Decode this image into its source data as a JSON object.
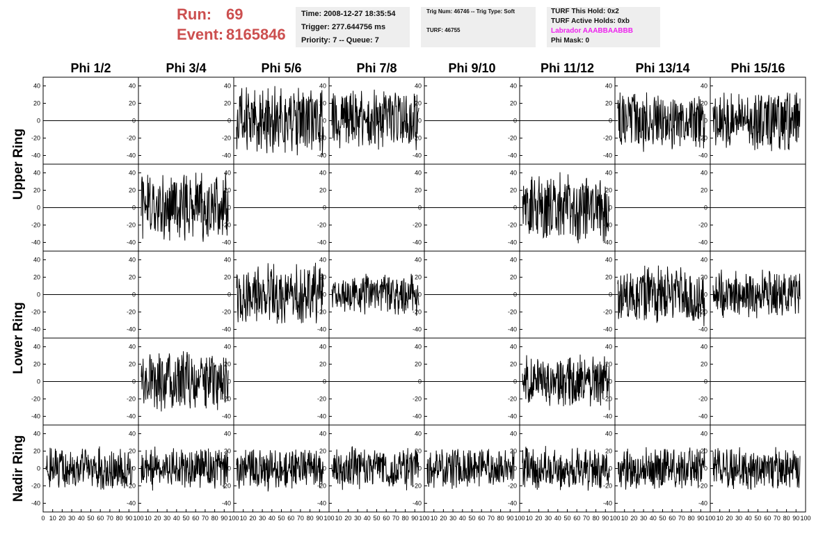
{
  "header": {
    "run_label": "Run:",
    "run_value": "69",
    "event_label": "Event:",
    "event_value": "8165846",
    "time_text": "Time: 2008-12-27 18:35:54",
    "trigger_text": "Trigger: 277.644756 ms",
    "priority_text": "Priority: 7 -- Queue: 7",
    "trig_num_text": "Trig Num: 46746 -- Trig Type: Soft",
    "turf_text": "TURF: 46755",
    "turf_hold_text": "TURF This Hold: 0x2",
    "turf_active_text": "TURF Active Holds: 0xb",
    "labrador_text": "Labrador AAABBAABBB",
    "phi_mask_text": "Phi Mask: 0",
    "accent_color": "#cc4f4f",
    "labrador_color": "#ee22ee"
  },
  "chart_data": {
    "type": "line",
    "columns": [
      "Phi 1/2",
      "Phi 3/4",
      "Phi 5/6",
      "Phi 7/8",
      "Phi 9/10",
      "Phi 11/12",
      "Phi 13/14",
      "Phi 15/16"
    ],
    "rows": [
      "Upper Ring",
      "Lower Ring",
      "Nadir Ring"
    ],
    "xlim": [
      0,
      100
    ],
    "ylim": [
      -50,
      50
    ],
    "xticks": [
      0,
      10,
      20,
      30,
      40,
      50,
      60,
      70,
      80,
      90,
      100
    ],
    "yticks": [
      -40,
      -20,
      0,
      20,
      40
    ],
    "panels": [
      [
        {
          "amp": 0
        },
        {
          "amp": 0
        },
        {
          "amp": 22
        },
        {
          "amp": 20
        },
        {
          "amp": 0
        },
        {
          "amp": 0
        },
        {
          "amp": 20
        },
        {
          "amp": 20
        }
      ],
      [
        {
          "amp": 0
        },
        {
          "amp": 22
        },
        {
          "amp": 0
        },
        {
          "amp": 0
        },
        {
          "amp": 0
        },
        {
          "amp": 22
        },
        {
          "amp": 0
        },
        {
          "amp": 0
        }
      ],
      [
        {
          "amp": 0
        },
        {
          "amp": 0
        },
        {
          "amp": 20
        },
        {
          "amp": 14
        },
        {
          "amp": 0
        },
        {
          "amp": 0
        },
        {
          "amp": 20
        },
        {
          "amp": 16
        }
      ],
      [
        {
          "amp": 0
        },
        {
          "amp": 20
        },
        {
          "amp": 0
        },
        {
          "amp": 0
        },
        {
          "amp": 0
        },
        {
          "amp": 18
        },
        {
          "amp": 0
        },
        {
          "amp": 0
        }
      ],
      [
        {
          "amp": 14
        },
        {
          "amp": 14
        },
        {
          "amp": 14
        },
        {
          "amp": 14
        },
        {
          "amp": 14
        },
        {
          "amp": 14
        },
        {
          "amp": 14
        },
        {
          "amp": 14
        }
      ]
    ]
  }
}
